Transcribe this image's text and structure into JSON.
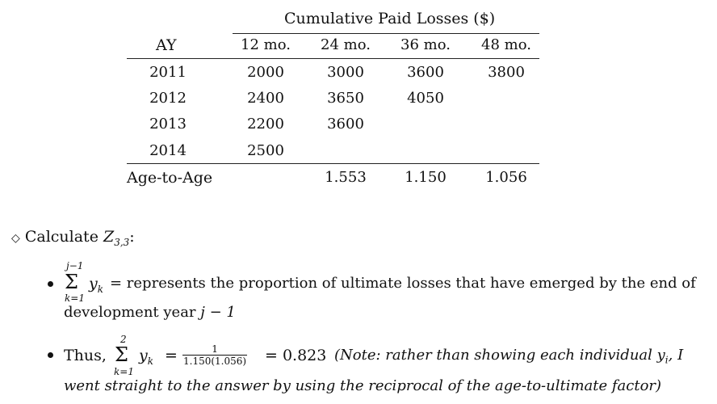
{
  "table": {
    "group_header": "Cumulative Paid Losses ($)",
    "row_header": "AY",
    "columns": [
      "12 mo.",
      "24 mo.",
      "36 mo.",
      "48 mo."
    ],
    "rows": [
      {
        "ay": "2011",
        "values": [
          "2000",
          "3000",
          "3600",
          "3800"
        ]
      },
      {
        "ay": "2012",
        "values": [
          "2400",
          "3650",
          "4050",
          ""
        ]
      },
      {
        "ay": "2013",
        "values": [
          "2200",
          "3600",
          "",
          ""
        ]
      },
      {
        "ay": "2014",
        "values": [
          "2500",
          "",
          "",
          ""
        ]
      }
    ],
    "footer": {
      "label": "Age-to-Age",
      "values": [
        "",
        "1.553",
        "1.150",
        "1.056"
      ]
    }
  },
  "calc": {
    "diamond": "◇",
    "label": "Calculate",
    "var": "Z",
    "sub": "3,3",
    "colon": ":"
  },
  "bullet1": {
    "sum_upper": "j−1",
    "sum_lower": "k=1",
    "sigma": "Σ",
    "term": "y",
    "term_sub": "k",
    "text_line1": "= represents the proportion of ultimate losses that have emerged by the end of",
    "text_line2_a": "development year",
    "text_line2_b": "j − 1"
  },
  "bullet2": {
    "lead": "Thus,",
    "sum_upper": "2",
    "sum_lower": "k=1",
    "sigma": "Σ",
    "term": "y",
    "term_sub": "k",
    "eq": "=",
    "frac_num": "1",
    "frac_den": "1.150(1.056)",
    "result": "= 0.823",
    "note_line1": "(Note: rather than showing each individual y",
    "note_sub": "i",
    "note_line1_end": ", I",
    "note_line2": "went straight to the answer by using the reciprocal of the age-to-ultimate factor)"
  }
}
